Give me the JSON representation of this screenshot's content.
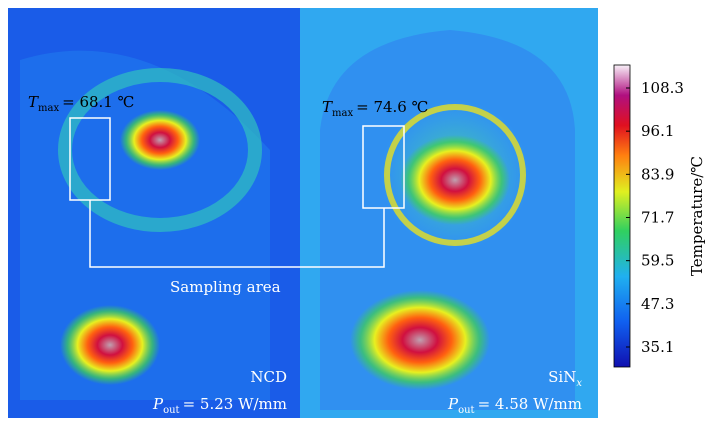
{
  "left_panel": {
    "tmax": {
      "symbol": "T",
      "subscript": "max",
      "text": "= 68.1 ℃"
    },
    "material": "NCD",
    "power": {
      "symbol": "P",
      "subscript": "out",
      "text": "= 5.23 W/mm"
    }
  },
  "right_panel": {
    "tmax": {
      "symbol": "T",
      "subscript": "max",
      "text": "= 74.6 ℃"
    },
    "material": {
      "text": "SiN",
      "subscript": "x"
    },
    "power": {
      "symbol": "P",
      "subscript": "out",
      "text": "= 4.58 W/mm"
    }
  },
  "sampling_label": "Sampling area",
  "colorbar": {
    "label": "Temperature/℃",
    "ticks": [
      108.3,
      96.1,
      83.9,
      71.7,
      59.5,
      47.3,
      35.1
    ]
  }
}
